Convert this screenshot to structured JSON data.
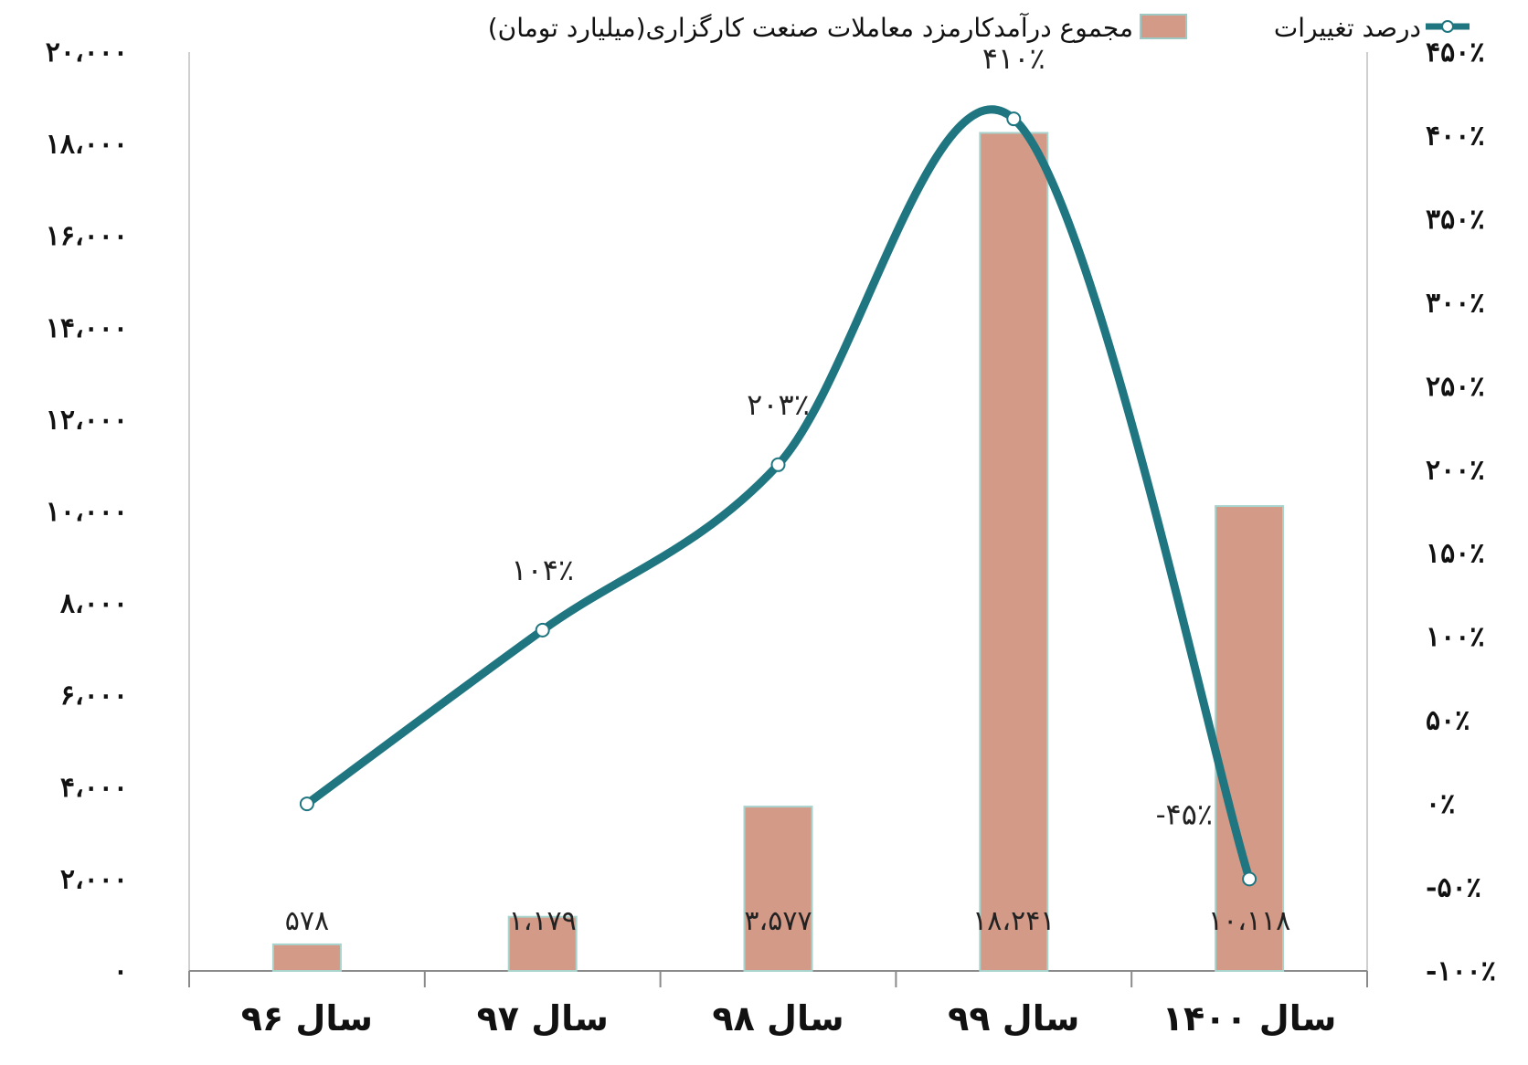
{
  "chart_data": {
    "type": "bar",
    "categories": [
      "سال ۹۶",
      "سال ۹۷",
      "سال ۹۸",
      "سال ۹۹",
      "سال ۱۴۰۰"
    ],
    "series": [
      {
        "name": "مجموع درآمدکارمزد معاملات صنعت کارگزاری(میلیارد تومان)",
        "type": "bar",
        "axis": "left",
        "values": [
          578,
          1179,
          3577,
          18241,
          10118
        ],
        "value_labels": [
          "۵۷۸",
          "۱،۱۷۹",
          "۳،۵۷۷",
          "۱۸،۲۴۱",
          "۱۰،۱۱۸"
        ],
        "color": "#d49a88"
      },
      {
        "name": "درصد تغییرات",
        "type": "line",
        "axis": "right",
        "smooth": true,
        "values": [
          0,
          104,
          203,
          410,
          -45
        ],
        "value_labels": [
          "",
          "۱۰۴٪",
          "۲۰۳٪",
          "۴۱۰٪",
          "-۴۵٪"
        ],
        "color": "#1f7680"
      }
    ],
    "y_left": {
      "ylim": [
        0,
        20000
      ],
      "ticks": [
        0,
        2000,
        4000,
        6000,
        8000,
        10000,
        12000,
        14000,
        16000,
        18000,
        20000
      ],
      "tick_labels": [
        "۰",
        "۲،۰۰۰",
        "۴،۰۰۰",
        "۶،۰۰۰",
        "۸،۰۰۰",
        "۱۰،۰۰۰",
        "۱۲،۰۰۰",
        "۱۴،۰۰۰",
        "۱۶،۰۰۰",
        "۱۸،۰۰۰",
        "۲۰،۰۰۰"
      ]
    },
    "y_right": {
      "ylim": [
        -100,
        450
      ],
      "ticks": [
        -100,
        -50,
        0,
        50,
        100,
        150,
        200,
        250,
        300,
        350,
        400,
        450
      ],
      "tick_labels": [
        "-۱۰۰٪",
        "-۵۰٪",
        "۰٪",
        "۵۰٪",
        "۱۰۰٪",
        "۱۵۰٪",
        "۲۰۰٪",
        "۲۵۰٪",
        "۳۰۰٪",
        "۳۵۰٪",
        "۴۰۰٪",
        "۴۵۰٪"
      ]
    },
    "legend": {
      "position": "top",
      "entries": [
        "مجموع درآمدکارمزد معاملات صنعت کارگزاری(میلیارد تومان)",
        "درصد تغییرات"
      ]
    },
    "grid": false,
    "title": "",
    "xlabel": "",
    "ylabel": ""
  }
}
